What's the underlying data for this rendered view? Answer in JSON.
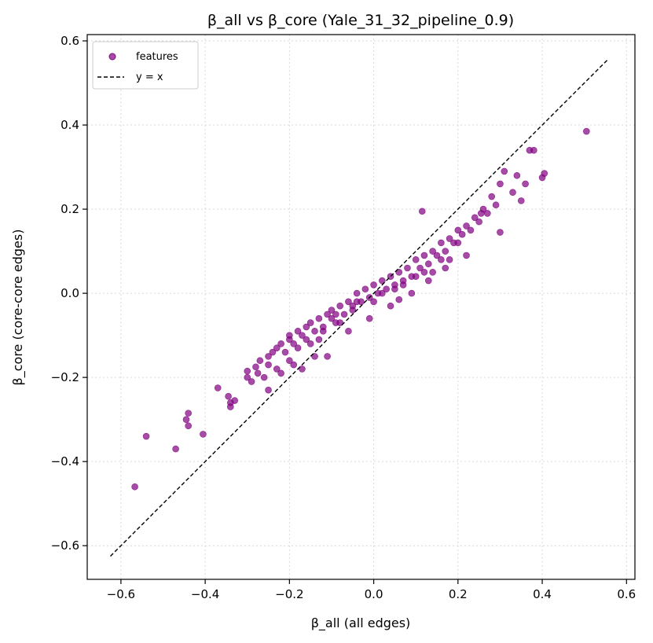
{
  "chart_data": {
    "type": "scatter",
    "title": "β_all vs β_core (Yale_31_32_pipeline_0.9)",
    "xlabel": "β_all (all edges)",
    "ylabel": "β_core (core-core edges)",
    "xlim": [
      -0.68,
      0.62
    ],
    "ylim": [
      -0.68,
      0.615
    ],
    "xticks": [
      -0.6,
      -0.4,
      -0.2,
      0.0,
      0.2,
      0.4,
      0.6
    ],
    "yticks": [
      -0.6,
      -0.4,
      -0.2,
      0.0,
      0.2,
      0.4,
      0.6
    ],
    "grid": true,
    "legend_position": "top-left",
    "point_color": "#800080",
    "line_color": "#000000",
    "series": [
      {
        "name": "features",
        "kind": "scatter",
        "x": [
          -0.567,
          -0.54,
          -0.47,
          -0.405,
          -0.44,
          -0.445,
          -0.44,
          -0.37,
          -0.345,
          -0.34,
          -0.34,
          -0.33,
          -0.3,
          -0.3,
          -0.29,
          -0.28,
          -0.275,
          -0.27,
          -0.26,
          -0.25,
          -0.25,
          -0.24,
          -0.23,
          -0.23,
          -0.22,
          -0.21,
          -0.2,
          -0.2,
          -0.19,
          -0.18,
          -0.17,
          -0.16,
          -0.16,
          -0.15,
          -0.14,
          -0.13,
          -0.12,
          -0.11,
          -0.1,
          -0.1,
          -0.09,
          -0.08,
          -0.07,
          -0.06,
          -0.05,
          -0.04,
          -0.03,
          -0.02,
          -0.01,
          0.0,
          0.01,
          0.02,
          0.03,
          0.04,
          0.05,
          0.06,
          0.07,
          0.08,
          0.09,
          0.1,
          0.11,
          0.12,
          0.13,
          0.14,
          0.15,
          0.16,
          0.17,
          0.18,
          0.19,
          0.2,
          0.21,
          0.22,
          0.23,
          0.24,
          0.25,
          0.26,
          0.27,
          0.28,
          0.29,
          0.3,
          0.31,
          0.33,
          0.34,
          0.35,
          0.36,
          0.37,
          0.38,
          0.4,
          0.405,
          0.505,
          -0.2,
          -0.15,
          -0.12,
          -0.08,
          -0.05,
          0.0,
          0.05,
          0.1,
          0.14,
          0.18,
          -0.22,
          -0.18,
          -0.13,
          -0.09,
          -0.04,
          0.02,
          0.07,
          0.12,
          0.16,
          0.2,
          -0.25,
          -0.19,
          -0.14,
          -0.06,
          -0.01,
          0.04,
          0.09,
          0.13,
          0.17,
          0.22,
          0.06,
          0.115,
          -0.11,
          -0.17,
          0.3,
          0.255
        ],
        "y": [
          -0.46,
          -0.34,
          -0.37,
          -0.335,
          -0.285,
          -0.3,
          -0.315,
          -0.225,
          -0.245,
          -0.26,
          -0.27,
          -0.255,
          -0.2,
          -0.185,
          -0.21,
          -0.175,
          -0.19,
          -0.16,
          -0.2,
          -0.17,
          -0.15,
          -0.14,
          -0.18,
          -0.13,
          -0.12,
          -0.14,
          -0.11,
          -0.1,
          -0.12,
          -0.09,
          -0.1,
          -0.08,
          -0.11,
          -0.07,
          -0.09,
          -0.06,
          -0.08,
          -0.05,
          -0.06,
          -0.04,
          -0.07,
          -0.03,
          -0.05,
          -0.02,
          -0.03,
          0.0,
          -0.02,
          0.01,
          -0.01,
          0.02,
          0.0,
          0.03,
          0.01,
          0.04,
          0.02,
          0.05,
          0.03,
          0.06,
          0.04,
          0.08,
          0.06,
          0.09,
          0.07,
          0.1,
          0.09,
          0.12,
          0.1,
          0.13,
          0.12,
          0.15,
          0.14,
          0.16,
          0.15,
          0.18,
          0.17,
          0.2,
          0.19,
          0.23,
          0.21,
          0.26,
          0.29,
          0.24,
          0.28,
          0.22,
          0.26,
          0.34,
          0.34,
          0.275,
          0.285,
          0.385,
          -0.16,
          -0.12,
          -0.09,
          -0.07,
          -0.04,
          -0.02,
          0.01,
          0.04,
          0.05,
          0.08,
          -0.19,
          -0.13,
          -0.11,
          -0.05,
          -0.02,
          0.0,
          0.02,
          0.05,
          0.08,
          0.12,
          -0.23,
          -0.17,
          -0.15,
          -0.09,
          -0.06,
          -0.03,
          0.0,
          0.03,
          0.06,
          0.09,
          -0.015,
          0.195,
          -0.15,
          -0.18,
          0.145,
          0.19
        ]
      },
      {
        "name": "y = x",
        "kind": "line",
        "x": [
          -0.625,
          0.555
        ],
        "y": [
          -0.625,
          0.555
        ]
      }
    ]
  }
}
